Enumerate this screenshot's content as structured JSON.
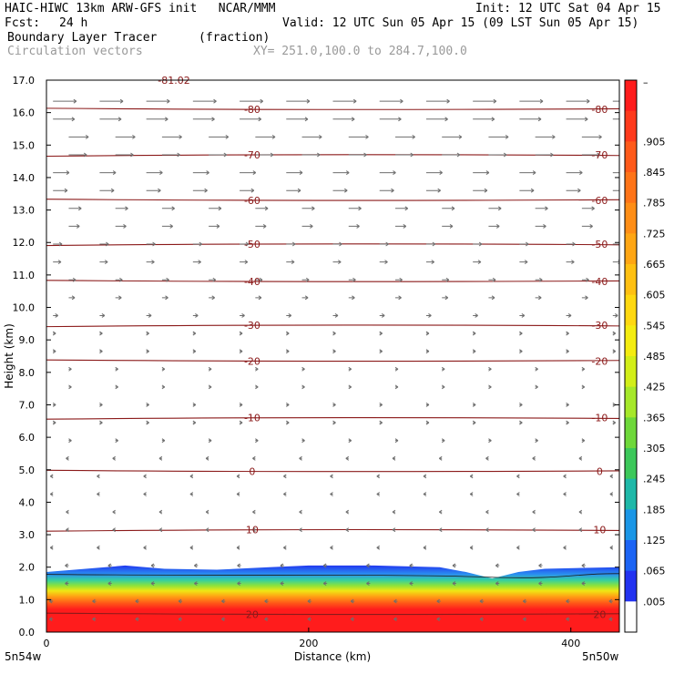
{
  "header": {
    "model": "HAIC-HIWC 13km ARW-GFS init   NCAR/MMM",
    "init": "Init: 12 UTC Sat 04 Apr 15",
    "fcst_label": "Fcst:",
    "fcst_value": "24 h",
    "valid": "Valid: 12 UTC Sun 05 Apr 15 (09 LST Sun 05 Apr 15)",
    "field": "Boundary Layer Tracer",
    "units": "(fraction)",
    "vectors": "Circulation vectors",
    "xy": "XY= 251.0,100.0 to 284.7,100.0"
  },
  "chart_data": {
    "type": "heatmap",
    "title": "Boundary Layer Tracer",
    "xlabel": "Distance (km)",
    "ylabel": "Height (km)",
    "xlim": [
      0,
      437
    ],
    "ylim": [
      0,
      17
    ],
    "x_ticks": [
      0,
      200,
      400
    ],
    "y_ticks": [
      0,
      1,
      2,
      3,
      4,
      5,
      6,
      7,
      8,
      9,
      10,
      11,
      12,
      13,
      14,
      15,
      16,
      17
    ],
    "y_tick_labels": [
      "0.0",
      "1.0",
      "2.0",
      "3.0",
      "4.0",
      "5.0",
      "6.0",
      "7.0",
      "8.0",
      "9.0",
      "10.0",
      "11.0",
      "12.0",
      "13.0",
      "14.0",
      "15.0",
      "16.0",
      "17.0"
    ],
    "left_endpoint": "5n54w",
    "right_endpoint": "5n50w",
    "colorbar": {
      "labels": [
        "–",
        ".905",
        ".845",
        ".785",
        ".725",
        ".665",
        ".605",
        ".545",
        ".485",
        ".425",
        ".365",
        ".305",
        ".245",
        ".185",
        ".125",
        ".065",
        ".005"
      ],
      "colors": [
        "#ff1c1c",
        "#ff3a1c",
        "#ff5a1a",
        "#ff7418",
        "#ff8e16",
        "#ffa614",
        "#ffc012",
        "#ffd810",
        "#f4ec10",
        "#d2ee18",
        "#a6e82a",
        "#6ed83a",
        "#3cc85a",
        "#1eb8a8",
        "#1a96e6",
        "#1c64f4",
        "#2232f0",
        "#ffffff"
      ]
    },
    "temperature_contours": [
      {
        "label": "20",
        "height_km": 0.55
      },
      {
        "label": "10",
        "height_km": 3.15
      },
      {
        "label": "0",
        "height_km": 4.95
      },
      {
        "label": "-10",
        "height_km": 6.6
      },
      {
        "label": "-20",
        "height_km": 8.35
      },
      {
        "label": "-30",
        "height_km": 9.45
      },
      {
        "label": "-40",
        "height_km": 10.8
      },
      {
        "label": "-50",
        "height_km": 11.95
      },
      {
        "label": "-60",
        "height_km": 13.3
      },
      {
        "label": "-70",
        "height_km": 14.7
      },
      {
        "label": "-80",
        "height_km": 16.1
      }
    ],
    "top_label": "-81.02",
    "tracer_top_profile": {
      "x_km": [
        0,
        30,
        60,
        90,
        130,
        170,
        200,
        250,
        300,
        320,
        340,
        360,
        380,
        437
      ],
      "top_km": [
        1.85,
        1.95,
        2.05,
        1.95,
        1.92,
        2.0,
        2.05,
        2.05,
        2.0,
        1.85,
        1.65,
        1.85,
        1.95,
        2.0
      ]
    }
  }
}
